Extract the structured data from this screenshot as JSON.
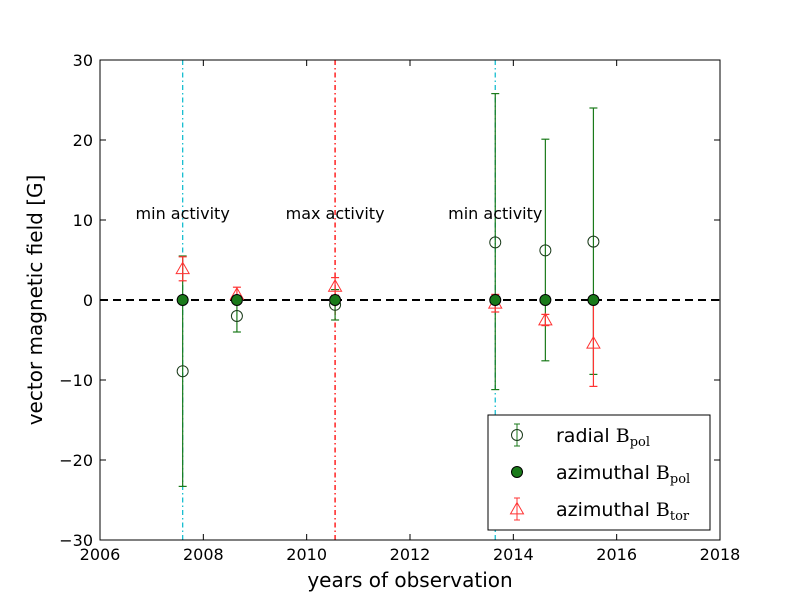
{
  "chart_data": {
    "type": "scatter",
    "title": "",
    "xlabel": "years of observation",
    "ylabel": "vector magnetic field [G]",
    "xlim": [
      2006,
      2018
    ],
    "ylim": [
      -30,
      30
    ],
    "xticks": [
      2006,
      2008,
      2010,
      2012,
      2014,
      2016,
      2018
    ],
    "yticks": [
      -30,
      -20,
      -10,
      0,
      10,
      20,
      30
    ],
    "xtick_labels": [
      "2006",
      "2008",
      "2010",
      "2012",
      "2014",
      "2016",
      "2018"
    ],
    "ytick_labels": [
      "−30",
      "−20",
      "−10",
      "0",
      "10",
      "20",
      "30"
    ],
    "grid": false,
    "legend_position": "bottom-right",
    "reference_lines": [
      {
        "orientation": "horizontal",
        "value": 0,
        "style": "dashed",
        "color": "#000000"
      },
      {
        "orientation": "vertical",
        "value": 2007.6,
        "style": "dash-dot",
        "color": "#17becf"
      },
      {
        "orientation": "vertical",
        "value": 2010.55,
        "style": "dash-dot",
        "color": "#ff0000"
      },
      {
        "orientation": "vertical",
        "value": 2013.65,
        "style": "dash-dot",
        "color": "#17becf"
      }
    ],
    "annotations": [
      {
        "text": "min activity",
        "x": 2007.6,
        "y": 10
      },
      {
        "text": "max activity",
        "x": 2010.55,
        "y": 10
      },
      {
        "text": "min activity",
        "x": 2013.65,
        "y": 10
      }
    ],
    "series": [
      {
        "name": "radial",
        "sub_main": "B",
        "sub_script": "pol",
        "marker": "open-circle",
        "color": "#1a7a1a",
        "points": [
          {
            "x": 2007.6,
            "y": -8.9,
            "err_low": -23.3,
            "err_high": 5.5
          },
          {
            "x": 2008.65,
            "y": -2.0,
            "err_low": -4.0,
            "err_high": 0.0
          },
          {
            "x": 2010.55,
            "y": -0.6,
            "err_low": -2.5,
            "err_high": 1.3
          },
          {
            "x": 2013.65,
            "y": 7.2,
            "err_low": -11.2,
            "err_high": 25.8
          },
          {
            "x": 2014.62,
            "y": 6.2,
            "err_low": -7.6,
            "err_high": 20.1
          },
          {
            "x": 2015.55,
            "y": 7.3,
            "err_low": -9.3,
            "err_high": 24.0
          }
        ]
      },
      {
        "name": "azimuthal",
        "sub_main": "B",
        "sub_script": "pol",
        "marker": "filled-circle",
        "color": "#1a7a1a",
        "points": [
          {
            "x": 2007.6,
            "y": 0
          },
          {
            "x": 2008.65,
            "y": 0
          },
          {
            "x": 2010.55,
            "y": 0
          },
          {
            "x": 2013.65,
            "y": 0
          },
          {
            "x": 2014.62,
            "y": 0
          },
          {
            "x": 2015.55,
            "y": 0
          }
        ]
      },
      {
        "name": "azimuthal",
        "sub_main": "B",
        "sub_script": "tor",
        "marker": "open-triangle",
        "color": "#ff3333",
        "points": [
          {
            "x": 2007.6,
            "y": 3.9,
            "err_low": 2.4,
            "err_high": 5.4
          },
          {
            "x": 2008.65,
            "y": 0.7,
            "err_low": -0.2,
            "err_high": 1.6
          },
          {
            "x": 2010.55,
            "y": 1.7,
            "err_low": 0.6,
            "err_high": 2.8
          },
          {
            "x": 2013.65,
            "y": -0.4,
            "err_low": -1.5,
            "err_high": 0.7
          },
          {
            "x": 2014.62,
            "y": -2.5,
            "err_low": -3.2,
            "err_high": -1.8
          },
          {
            "x": 2015.55,
            "y": -5.4,
            "err_low": -10.8,
            "err_high": 0.0
          }
        ]
      }
    ]
  }
}
